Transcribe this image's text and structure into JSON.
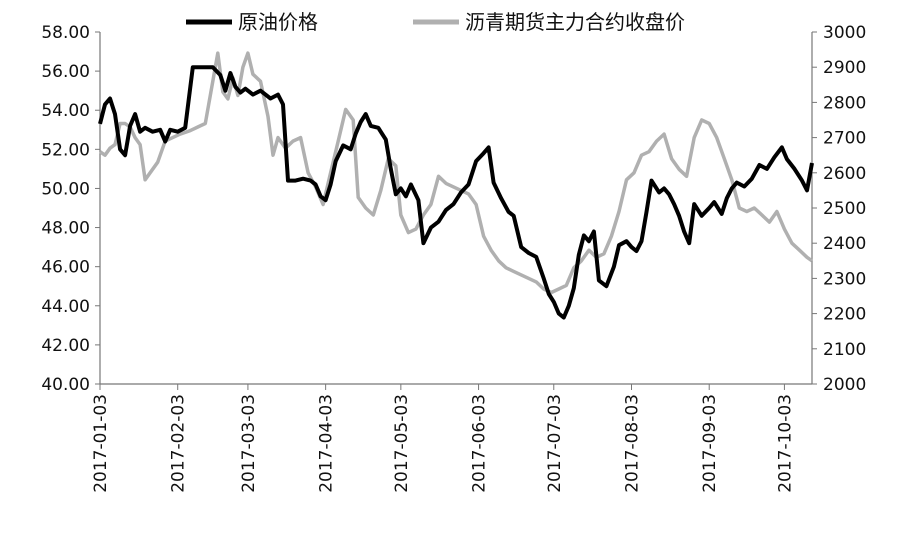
{
  "chart_data": {
    "type": "line",
    "x_labels": [
      "2017-01-03",
      "2017-02-03",
      "2017-03-03",
      "2017-04-03",
      "2017-05-03",
      "2017-06-03",
      "2017-07-03",
      "2017-08-03",
      "2017-09-03",
      "2017-10-03"
    ],
    "y_left": {
      "min": 40,
      "max": 58,
      "ticks": [
        "40.00",
        "42.00",
        "44.00",
        "46.00",
        "48.00",
        "50.00",
        "52.00",
        "54.00",
        "56.00",
        "58.00"
      ]
    },
    "y_right": {
      "min": 2000,
      "max": 3000,
      "ticks": [
        "2000",
        "2100",
        "2200",
        "2300",
        "2400",
        "2500",
        "2600",
        "2700",
        "2800",
        "2900",
        "3000"
      ]
    },
    "legend_position": "top",
    "grid": false,
    "series": [
      {
        "name": "原油价格",
        "axis": "left",
        "color": "#000000",
        "points": [
          [
            "2017-01-03",
            53.3
          ],
          [
            "2017-01-05",
            54.3
          ],
          [
            "2017-01-07",
            54.6
          ],
          [
            "2017-01-09",
            53.8
          ],
          [
            "2017-01-11",
            52.0
          ],
          [
            "2017-01-13",
            51.7
          ],
          [
            "2017-01-15",
            53.2
          ],
          [
            "2017-01-17",
            53.8
          ],
          [
            "2017-01-19",
            52.9
          ],
          [
            "2017-01-21",
            53.1
          ],
          [
            "2017-01-24",
            52.9
          ],
          [
            "2017-01-27",
            53.0
          ],
          [
            "2017-01-29",
            52.4
          ],
          [
            "2017-01-31",
            53.0
          ],
          [
            "2017-02-03",
            52.9
          ],
          [
            "2017-02-06",
            53.1
          ],
          [
            "2017-02-09",
            56.2
          ],
          [
            "2017-02-14",
            56.2
          ],
          [
            "2017-02-17",
            56.2
          ],
          [
            "2017-02-20",
            55.8
          ],
          [
            "2017-02-22",
            55.0
          ],
          [
            "2017-02-24",
            55.9
          ],
          [
            "2017-02-26",
            55.2
          ],
          [
            "2017-02-28",
            54.9
          ],
          [
            "2017-03-02",
            55.1
          ],
          [
            "2017-03-05",
            54.8
          ],
          [
            "2017-03-08",
            55.0
          ],
          [
            "2017-03-12",
            54.6
          ],
          [
            "2017-03-15",
            54.8
          ],
          [
            "2017-03-17",
            54.3
          ],
          [
            "2017-03-19",
            50.4
          ],
          [
            "2017-03-22",
            50.4
          ],
          [
            "2017-03-25",
            50.5
          ],
          [
            "2017-03-28",
            50.4
          ],
          [
            "2017-03-30",
            50.2
          ],
          [
            "2017-04-01",
            49.6
          ],
          [
            "2017-04-03",
            49.4
          ],
          [
            "2017-04-05",
            50.2
          ],
          [
            "2017-04-07",
            51.4
          ],
          [
            "2017-04-10",
            52.2
          ],
          [
            "2017-04-13",
            52.0
          ],
          [
            "2017-04-15",
            52.8
          ],
          [
            "2017-04-17",
            53.4
          ],
          [
            "2017-04-19",
            53.8
          ],
          [
            "2017-04-21",
            53.2
          ],
          [
            "2017-04-24",
            53.1
          ],
          [
            "2017-04-27",
            52.5
          ],
          [
            "2017-04-29",
            51.0
          ],
          [
            "2017-05-01",
            49.7
          ],
          [
            "2017-05-03",
            50.0
          ],
          [
            "2017-05-05",
            49.6
          ],
          [
            "2017-05-07",
            50.2
          ],
          [
            "2017-05-10",
            49.4
          ],
          [
            "2017-05-12",
            47.2
          ],
          [
            "2017-05-15",
            48.0
          ],
          [
            "2017-05-18",
            48.3
          ],
          [
            "2017-05-21",
            48.9
          ],
          [
            "2017-05-24",
            49.2
          ],
          [
            "2017-05-27",
            49.8
          ],
          [
            "2017-05-30",
            50.2
          ],
          [
            "2017-06-02",
            51.4
          ],
          [
            "2017-06-05",
            51.8
          ],
          [
            "2017-06-07",
            52.1
          ],
          [
            "2017-06-09",
            50.3
          ],
          [
            "2017-06-12",
            49.5
          ],
          [
            "2017-06-15",
            48.8
          ],
          [
            "2017-06-17",
            48.6
          ],
          [
            "2017-06-20",
            47.0
          ],
          [
            "2017-06-23",
            46.7
          ],
          [
            "2017-06-26",
            46.5
          ],
          [
            "2017-06-29",
            45.4
          ],
          [
            "2017-07-01",
            44.6
          ],
          [
            "2017-07-03",
            44.2
          ],
          [
            "2017-07-05",
            43.6
          ],
          [
            "2017-07-07",
            43.4
          ],
          [
            "2017-07-09",
            44.0
          ],
          [
            "2017-07-11",
            44.9
          ],
          [
            "2017-07-13",
            46.6
          ],
          [
            "2017-07-15",
            47.6
          ],
          [
            "2017-07-17",
            47.3
          ],
          [
            "2017-07-19",
            47.8
          ],
          [
            "2017-07-21",
            45.3
          ],
          [
            "2017-07-24",
            45.0
          ],
          [
            "2017-07-27",
            46.0
          ],
          [
            "2017-07-29",
            47.1
          ],
          [
            "2017-08-01",
            47.3
          ],
          [
            "2017-08-03",
            47.0
          ],
          [
            "2017-08-05",
            46.8
          ],
          [
            "2017-08-07",
            47.3
          ],
          [
            "2017-08-09",
            48.8
          ],
          [
            "2017-08-11",
            50.4
          ],
          [
            "2017-08-14",
            49.8
          ],
          [
            "2017-08-16",
            50.0
          ],
          [
            "2017-08-18",
            49.7
          ],
          [
            "2017-08-20",
            49.2
          ],
          [
            "2017-08-22",
            48.6
          ],
          [
            "2017-08-24",
            47.8
          ],
          [
            "2017-08-26",
            47.2
          ],
          [
            "2017-08-28",
            49.2
          ],
          [
            "2017-08-31",
            48.6
          ],
          [
            "2017-09-03",
            49.0
          ],
          [
            "2017-09-05",
            49.3
          ],
          [
            "2017-09-08",
            48.7
          ],
          [
            "2017-09-10",
            49.5
          ],
          [
            "2017-09-12",
            50.0
          ],
          [
            "2017-09-14",
            50.3
          ],
          [
            "2017-09-17",
            50.1
          ],
          [
            "2017-09-20",
            50.5
          ],
          [
            "2017-09-23",
            51.2
          ],
          [
            "2017-09-26",
            51.0
          ],
          [
            "2017-09-29",
            51.6
          ],
          [
            "2017-10-02",
            52.1
          ],
          [
            "2017-10-04",
            51.5
          ],
          [
            "2017-10-07",
            51.0
          ],
          [
            "2017-10-10",
            50.4
          ],
          [
            "2017-10-12",
            49.9
          ],
          [
            "2017-10-14",
            51.3
          ]
        ]
      },
      {
        "name": "沥青期货主力合约收盘价",
        "axis": "right",
        "color": "#b0b0b0",
        "points": [
          [
            "2017-01-03",
            2660
          ],
          [
            "2017-01-05",
            2650
          ],
          [
            "2017-01-07",
            2670
          ],
          [
            "2017-01-09",
            2680
          ],
          [
            "2017-01-11",
            2740
          ],
          [
            "2017-01-13",
            2740
          ],
          [
            "2017-01-15",
            2730
          ],
          [
            "2017-01-17",
            2700
          ],
          [
            "2017-01-19",
            2680
          ],
          [
            "2017-01-21",
            2580
          ],
          [
            "2017-01-23",
            2600
          ],
          [
            "2017-01-26",
            2630
          ],
          [
            "2017-01-29",
            2690
          ],
          [
            "2017-02-01",
            2700
          ],
          [
            "2017-02-04",
            2710
          ],
          [
            "2017-02-08",
            2720
          ],
          [
            "2017-02-11",
            2730
          ],
          [
            "2017-02-14",
            2740
          ],
          [
            "2017-02-17",
            2860
          ],
          [
            "2017-02-19",
            2940
          ],
          [
            "2017-02-21",
            2830
          ],
          [
            "2017-02-23",
            2810
          ],
          [
            "2017-02-25",
            2870
          ],
          [
            "2017-02-27",
            2820
          ],
          [
            "2017-03-01",
            2900
          ],
          [
            "2017-03-03",
            2940
          ],
          [
            "2017-03-05",
            2880
          ],
          [
            "2017-03-08",
            2860
          ],
          [
            "2017-03-11",
            2760
          ],
          [
            "2017-03-13",
            2650
          ],
          [
            "2017-03-15",
            2700
          ],
          [
            "2017-03-18",
            2670
          ],
          [
            "2017-03-21",
            2690
          ],
          [
            "2017-03-24",
            2700
          ],
          [
            "2017-03-27",
            2600
          ],
          [
            "2017-03-30",
            2560
          ],
          [
            "2017-04-02",
            2510
          ],
          [
            "2017-04-05",
            2600
          ],
          [
            "2017-04-08",
            2690
          ],
          [
            "2017-04-11",
            2780
          ],
          [
            "2017-04-14",
            2750
          ],
          [
            "2017-04-16",
            2530
          ],
          [
            "2017-04-19",
            2500
          ],
          [
            "2017-04-22",
            2480
          ],
          [
            "2017-04-25",
            2550
          ],
          [
            "2017-04-28",
            2640
          ],
          [
            "2017-05-01",
            2620
          ],
          [
            "2017-05-03",
            2480
          ],
          [
            "2017-05-06",
            2430
          ],
          [
            "2017-05-09",
            2440
          ],
          [
            "2017-05-12",
            2480
          ],
          [
            "2017-05-15",
            2510
          ],
          [
            "2017-05-18",
            2590
          ],
          [
            "2017-05-21",
            2570
          ],
          [
            "2017-05-24",
            2560
          ],
          [
            "2017-05-27",
            2550
          ],
          [
            "2017-05-30",
            2540
          ],
          [
            "2017-06-02",
            2510
          ],
          [
            "2017-06-05",
            2420
          ],
          [
            "2017-06-08",
            2380
          ],
          [
            "2017-06-11",
            2350
          ],
          [
            "2017-06-14",
            2330
          ],
          [
            "2017-06-17",
            2320
          ],
          [
            "2017-06-20",
            2310
          ],
          [
            "2017-06-23",
            2300
          ],
          [
            "2017-06-26",
            2290
          ],
          [
            "2017-06-29",
            2270
          ],
          [
            "2017-07-02",
            2260
          ],
          [
            "2017-07-05",
            2270
          ],
          [
            "2017-07-08",
            2280
          ],
          [
            "2017-07-11",
            2330
          ],
          [
            "2017-07-14",
            2350
          ],
          [
            "2017-07-17",
            2380
          ],
          [
            "2017-07-20",
            2360
          ],
          [
            "2017-07-23",
            2370
          ],
          [
            "2017-07-26",
            2420
          ],
          [
            "2017-07-29",
            2490
          ],
          [
            "2017-08-01",
            2580
          ],
          [
            "2017-08-04",
            2600
          ],
          [
            "2017-08-07",
            2650
          ],
          [
            "2017-08-10",
            2660
          ],
          [
            "2017-08-13",
            2690
          ],
          [
            "2017-08-16",
            2710
          ],
          [
            "2017-08-19",
            2640
          ],
          [
            "2017-08-22",
            2610
          ],
          [
            "2017-08-25",
            2590
          ],
          [
            "2017-08-28",
            2700
          ],
          [
            "2017-08-31",
            2750
          ],
          [
            "2017-09-03",
            2740
          ],
          [
            "2017-09-06",
            2700
          ],
          [
            "2017-09-09",
            2640
          ],
          [
            "2017-09-12",
            2580
          ],
          [
            "2017-09-15",
            2500
          ],
          [
            "2017-09-18",
            2490
          ],
          [
            "2017-09-21",
            2500
          ],
          [
            "2017-09-24",
            2480
          ],
          [
            "2017-09-27",
            2460
          ],
          [
            "2017-09-30",
            2490
          ],
          [
            "2017-10-03",
            2440
          ],
          [
            "2017-10-06",
            2400
          ],
          [
            "2017-10-09",
            2380
          ],
          [
            "2017-10-12",
            2360
          ],
          [
            "2017-10-14",
            2350
          ]
        ]
      }
    ]
  }
}
